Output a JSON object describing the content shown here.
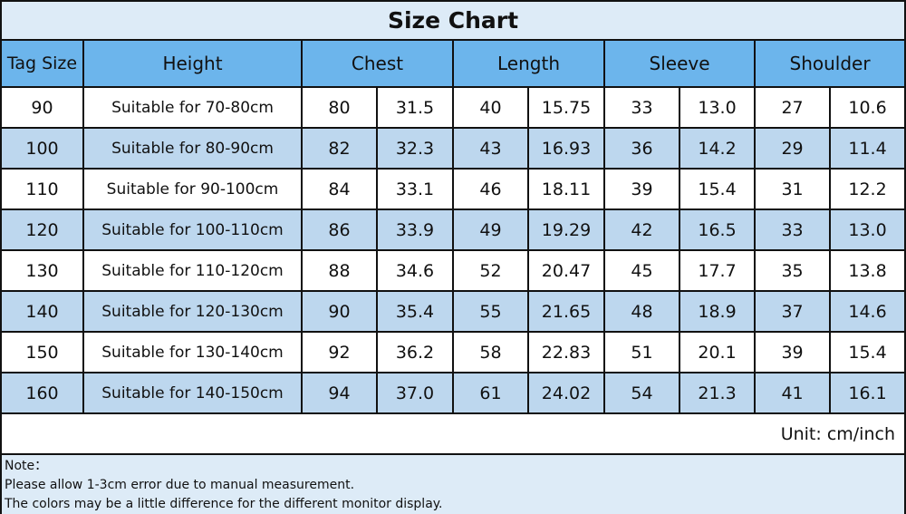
{
  "title": "Size Chart",
  "headers": [
    "Tag Size",
    "Height",
    "Chest",
    "Length",
    "Sleeve",
    "Shoulder"
  ],
  "rows": [
    [
      "90",
      "Suitable for 70-80cm",
      "80",
      "31.5",
      "40",
      "15.75",
      "33",
      "13.0",
      "27",
      "10.6"
    ],
    [
      "100",
      "Suitable for 80-90cm",
      "82",
      "32.3",
      "43",
      "16.93",
      "36",
      "14.2",
      "29",
      "11.4"
    ],
    [
      "110",
      "Suitable for 90-100cm",
      "84",
      "33.1",
      "46",
      "18.11",
      "39",
      "15.4",
      "31",
      "12.2"
    ],
    [
      "120",
      "Suitable for 100-110cm",
      "86",
      "33.9",
      "49",
      "19.29",
      "42",
      "16.5",
      "33",
      "13.0"
    ],
    [
      "130",
      "Suitable for 110-120cm",
      "88",
      "34.6",
      "52",
      "20.47",
      "45",
      "17.7",
      "35",
      "13.8"
    ],
    [
      "140",
      "Suitable for 120-130cm",
      "90",
      "35.4",
      "55",
      "21.65",
      "48",
      "18.9",
      "37",
      "14.6"
    ],
    [
      "150",
      "Suitable for 130-140cm",
      "92",
      "36.2",
      "58",
      "22.83",
      "51",
      "20.1",
      "39",
      "15.4"
    ],
    [
      "160",
      "Suitable for 140-150cm",
      "94",
      "37.0",
      "61",
      "24.02",
      "54",
      "21.3",
      "41",
      "16.1"
    ]
  ],
  "unit": "Unit: cm/inch",
  "notes": [
    "Note：",
    "Please allow 1-3cm error due to manual measurement.",
    "The colors may be a little difference for the different monitor display."
  ],
  "colors": {
    "header": "#6cb5ec",
    "alt_row": "#bdd7ee",
    "title_bg": "#ddebf7"
  }
}
